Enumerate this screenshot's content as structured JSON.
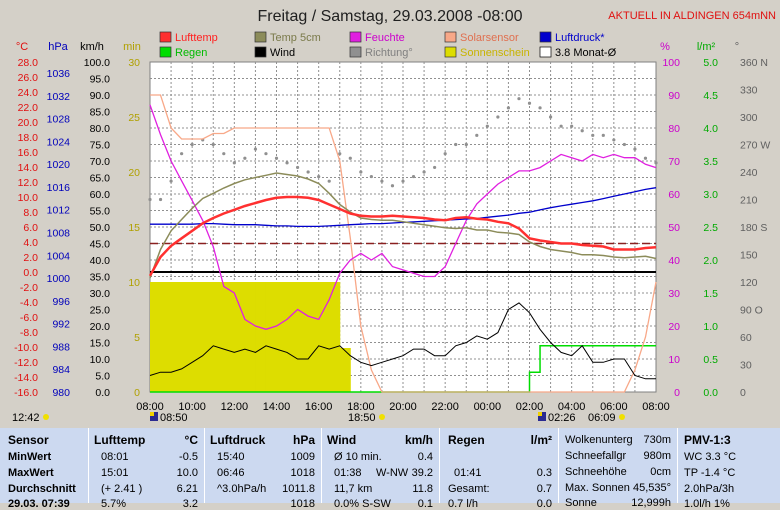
{
  "title": "Freitag / Samstag, 29.03.2008  -08:00",
  "banner": "AKTUELL IN ALDINGEN 654mNN",
  "axis_units": {
    "c": "°C",
    "hpa": "hPa",
    "kmh": "km/h",
    "min": "min",
    "pct": "%",
    "lm2": "l/m²",
    "deg": "°"
  },
  "axes": {
    "temp": [
      "28.0",
      "26.0",
      "24.0",
      "22.0",
      "20.0",
      "18.0",
      "16.0",
      "14.0",
      "12.0",
      "10.0",
      "8.0",
      "6.0",
      "4.0",
      "2.0",
      "0.0",
      "-2.0",
      "-4.0",
      "-6.0",
      "-8.0",
      "-10.0",
      "-12.0",
      "-14.0",
      "-16.0"
    ],
    "hpa": [
      "1036",
      "1032",
      "1028",
      "1024",
      "1020",
      "1016",
      "1012",
      "1008",
      "1004",
      "1000",
      "996",
      "992",
      "988",
      "984",
      "980"
    ],
    "kmh": [
      "100.0",
      "95.0",
      "90.0",
      "85.0",
      "80.0",
      "75.0",
      "70.0",
      "65.0",
      "60.0",
      "55.0",
      "50.0",
      "45.0",
      "40.0",
      "35.0",
      "30.0",
      "25.0",
      "20.0",
      "15.0",
      "10.0",
      "5.0",
      "0.0"
    ],
    "min": [
      "30",
      "25",
      "20",
      "15",
      "10",
      "5",
      "0"
    ],
    "pct": [
      "100",
      "90",
      "80",
      "70",
      "60",
      "50",
      "40",
      "30",
      "20",
      "10",
      "0"
    ],
    "lm2": [
      "5.0",
      "4.5",
      "4.0",
      "3.5",
      "3.0",
      "2.5",
      "2.0",
      "1.5",
      "1.0",
      "0.5",
      "0.0"
    ],
    "deg": [
      "360 N",
      "330",
      "300",
      "270 W",
      "240",
      "210",
      "180 S",
      "150",
      "120",
      "90 O",
      "60",
      "30",
      "0"
    ],
    "time": [
      "08:00",
      "10:00",
      "12:00",
      "14:00",
      "16:00",
      "18:00",
      "20:00",
      "22:00",
      "00:00",
      "02:00",
      "04:00",
      "06:00",
      "08:00"
    ]
  },
  "legend": [
    {
      "label": "Lufttemp",
      "color": "#ff3030",
      "outline": false,
      "label_color": "#ff2020"
    },
    {
      "label": "Regen",
      "color": "#00dd00",
      "outline": false,
      "label_color": "#00bb00"
    },
    {
      "label": "Temp 5cm",
      "color": "#8c8c5a",
      "outline": false,
      "label_color": "#7a7a4a"
    },
    {
      "label": "Wind",
      "color": "#000000",
      "outline": false,
      "label_color": "#000000"
    },
    {
      "label": "Feuchte",
      "color": "#e020e0",
      "outline": false,
      "label_color": "#cc00cc"
    },
    {
      "label": "Richtung°",
      "color": "#909090",
      "outline": false,
      "label_color": "#808080"
    },
    {
      "label": "Solarsensor",
      "color": "#f8a888",
      "outline": false,
      "label_color": "#e07050"
    },
    {
      "label": "Sonnenschein",
      "color": "#dddd00",
      "outline": false,
      "label_color": "#c8b400"
    },
    {
      "label": "Luftdruck*",
      "color": "#0000cc",
      "outline": false,
      "label_color": "#0000cc"
    },
    {
      "label": "3.8 Monat-Ø",
      "color": "#ffffff",
      "outline": true,
      "label_color": "#000000"
    }
  ],
  "markers": [
    {
      "text": "12:42",
      "sun": "yes"
    },
    {
      "text": "08:50",
      "sun": "moon"
    },
    {
      "text": "18:50",
      "sun": "yes"
    },
    {
      "text": "02:26",
      "sun": "moon"
    },
    {
      "text": "06:09",
      "sun": "yes"
    }
  ],
  "table": {
    "sensor": {
      "header": "Sensor",
      "rows": [
        "MinWert",
        "MaxWert",
        "Durchschnitt",
        "29.03. 07:39"
      ]
    },
    "lufttemp": {
      "header": "Lufttemp",
      "unit": "°C",
      "rows": [
        [
          "08:01",
          "-0.5"
        ],
        [
          "15:01",
          "10.0"
        ],
        [
          "(+ 2.41 )",
          "6.21"
        ],
        [
          "5.7% ",
          "3.2"
        ]
      ]
    },
    "luftdruck": {
      "header": "Luftdruck",
      "unit": "hPa",
      "rows": [
        [
          "15:40",
          "1009"
        ],
        [
          "06:46",
          "1018"
        ],
        [
          "^3.0hPa/h",
          "1011.8"
        ],
        [
          "",
          "1018"
        ]
      ]
    },
    "wind": {
      "header": "Wind",
      "unit": "km/h",
      "rows": [
        [
          "Ø 10 min.",
          "",
          "0.4"
        ],
        [
          "01:38",
          "W-NW",
          "39.2"
        ],
        [
          "11,7 km",
          "",
          "11.8"
        ],
        [
          "0.0% S-SW",
          "",
          "0.1"
        ]
      ]
    },
    "regen": {
      "header": "Regen",
      "unit": "l/m²",
      "rows": [
        [
          "",
          ""
        ],
        [
          "01:41",
          "0.3"
        ],
        [
          "Gesamt:",
          "0.7"
        ],
        [
          "0.7 l/h",
          "0.0"
        ]
      ]
    },
    "misc": {
      "rows": [
        [
          "Wolkenunterg",
          "730m"
        ],
        [
          "Schneefallgr",
          "980m"
        ],
        [
          "Schneehöhe",
          "0cm"
        ],
        [
          "Max. Sonnen",
          "45,535°"
        ],
        [
          "Sonne",
          "12,999h"
        ]
      ]
    },
    "pmv": {
      "header": "PMV-1:3",
      "rows": [
        "WC 3.3 °C",
        "TP -1.4 °C",
        "2.0hPa/3h",
        "1.0l/h 1%"
      ]
    }
  },
  "chart_data": {
    "type": "line",
    "title": "Freitag / Samstag, 29.03.2008  -08:00",
    "x_time": [
      "08:00",
      "08:30",
      "09:00",
      "09:30",
      "10:00",
      "10:30",
      "11:00",
      "11:30",
      "12:00",
      "12:30",
      "13:00",
      "13:30",
      "14:00",
      "14:30",
      "15:00",
      "15:30",
      "16:00",
      "16:30",
      "17:00",
      "17:30",
      "18:00",
      "18:30",
      "19:00",
      "19:30",
      "20:00",
      "20:30",
      "21:00",
      "21:30",
      "22:00",
      "22:30",
      "23:00",
      "23:30",
      "00:00",
      "00:30",
      "01:00",
      "01:30",
      "02:00",
      "02:30",
      "03:00",
      "03:30",
      "04:00",
      "04:30",
      "05:00",
      "05:30",
      "06:00",
      "06:30",
      "07:00",
      "07:30",
      "08:00"
    ],
    "series": [
      {
        "name": "Lufttemp",
        "unit": "°C",
        "color": "#ff3030",
        "values": [
          -0.5,
          2.0,
          3.5,
          4.5,
          5.5,
          6.5,
          7.2,
          7.8,
          8.3,
          8.8,
          9.2,
          9.6,
          9.9,
          10.0,
          10.0,
          9.9,
          9.6,
          9.0,
          8.4,
          7.8,
          7.5,
          7.4,
          7.4,
          7.5,
          7.4,
          7.3,
          7.2,
          7.0,
          6.9,
          7.2,
          7.3,
          7.1,
          7.0,
          6.7,
          6.5,
          5.8,
          4.5,
          4.2,
          4.0,
          3.8,
          3.8,
          3.6,
          3.5,
          3.4,
          3.0,
          3.0,
          3.0,
          3.2,
          3.3
        ]
      },
      {
        "name": "Temp 5cm",
        "unit": "°C",
        "color": "#8c8c5a",
        "values": [
          -0.8,
          3.0,
          5.5,
          7.0,
          8.5,
          9.8,
          10.5,
          11.2,
          11.8,
          12.3,
          12.6,
          12.9,
          13.2,
          13.0,
          12.8,
          12.4,
          11.8,
          10.5,
          9.0,
          8.0,
          7.2,
          7.0,
          6.9,
          6.9,
          6.7,
          6.5,
          6.3,
          6.1,
          5.9,
          5.8,
          5.9,
          5.6,
          5.6,
          5.3,
          5.2,
          5.0,
          4.0,
          3.4,
          3.0,
          2.8,
          2.6,
          2.3,
          2.3,
          2.2,
          2.0,
          1.9,
          2.0,
          2.1,
          1.8
        ]
      },
      {
        "name": "Feuchte",
        "unit": "%",
        "color": "#e020e0",
        "values": [
          87,
          78,
          70,
          64,
          58,
          52,
          44,
          32,
          30,
          22,
          20,
          19,
          20,
          22,
          25,
          23,
          22,
          28,
          36,
          40,
          42,
          40,
          42,
          38,
          37,
          36,
          35,
          35,
          38,
          45,
          52,
          57,
          60,
          63,
          65,
          67,
          67,
          68,
          70,
          72,
          71,
          70,
          72,
          71,
          72,
          71,
          71,
          69,
          68
        ]
      },
      {
        "name": "Luftdruck*",
        "unit": "hPa",
        "color": "#0000cc",
        "values": [
          1009.5,
          1009.5,
          1009.5,
          1009.5,
          1009.5,
          1009.6,
          1009.6,
          1009.5,
          1009.4,
          1009.4,
          1009.4,
          1009.3,
          1009.2,
          1009.2,
          1009.1,
          1009.1,
          1009.1,
          1009.2,
          1009.3,
          1009.4,
          1009.5,
          1009.6,
          1009.6,
          1009.7,
          1009.8,
          1009.9,
          1010.0,
          1010.1,
          1010.2,
          1010.3,
          1010.4,
          1010.5,
          1010.7,
          1010.9,
          1011.1,
          1011.4,
          1011.6,
          1012.0,
          1012.4,
          1012.7,
          1013.0,
          1013.3,
          1013.6,
          1014.0,
          1014.4,
          1014.8,
          1015.2,
          1015.6,
          1015.9
        ]
      },
      {
        "name": "Solarsensor",
        "unit": "min",
        "color": "#f8a888",
        "values": [
          27,
          27,
          24,
          23,
          23,
          23,
          23.5,
          23.5,
          24,
          24,
          24,
          24,
          24,
          24,
          24,
          24,
          24,
          24,
          21,
          14,
          6,
          2,
          0,
          0,
          0,
          0,
          0,
          0,
          0,
          0,
          0,
          0,
          0,
          0,
          0,
          0,
          0,
          0,
          0,
          0,
          0,
          0,
          0,
          0,
          0,
          0,
          2,
          5,
          10
        ]
      },
      {
        "name": "Wind",
        "unit": "km/h",
        "color": "#000000",
        "values": [
          5,
          6,
          6,
          7,
          9,
          11,
          14,
          13,
          12,
          13,
          12,
          14,
          13,
          12,
          10,
          10,
          14,
          13,
          14,
          11,
          9,
          8,
          9,
          10,
          11,
          13,
          13,
          11,
          11,
          14,
          15,
          17,
          16,
          18,
          25,
          27,
          24,
          19,
          15,
          12,
          11,
          14,
          9,
          9,
          10,
          10,
          5,
          4,
          4
        ]
      },
      {
        "name": "Richtung°",
        "unit": "°",
        "color": "#909090",
        "values": [
          210,
          210,
          230,
          260,
          270,
          275,
          270,
          260,
          250,
          255,
          265,
          260,
          255,
          250,
          245,
          240,
          235,
          230,
          260,
          255,
          240,
          235,
          230,
          225,
          230,
          235,
          240,
          245,
          260,
          270,
          270,
          280,
          290,
          300,
          310,
          320,
          315,
          310,
          300,
          290,
          290,
          285,
          280,
          280,
          275,
          270,
          265,
          255,
          250
        ]
      },
      {
        "name": "Regen",
        "unit": "l/m²",
        "color": "#00dd00",
        "values": [
          0,
          0,
          0,
          0,
          0,
          0,
          0,
          0,
          0,
          0,
          0,
          0,
          0,
          0,
          0,
          0,
          0,
          0,
          0,
          0,
          0,
          0,
          0,
          0,
          0,
          0,
          0,
          0,
          0,
          0,
          0,
          0,
          0,
          0,
          0,
          0,
          0.3,
          0.7,
          0.7,
          0.7,
          0.7,
          0.7,
          0.7,
          0.7,
          0.7,
          0.7,
          0.7,
          0.7,
          0.7
        ]
      },
      {
        "name": "Sonnenschein",
        "unit": "min",
        "color": "#dddd00",
        "values": [
          10,
          10,
          10,
          10,
          10,
          10,
          10,
          10,
          10,
          10,
          10,
          10,
          10,
          10,
          10,
          10,
          10,
          10,
          4,
          0,
          0,
          0,
          0,
          0,
          0,
          0,
          0,
          0,
          0,
          0,
          0,
          0,
          0,
          0,
          0,
          0,
          0,
          0,
          0,
          0,
          0,
          0,
          0,
          0,
          0,
          0,
          0,
          0,
          0
        ]
      }
    ],
    "ref_lines": [
      {
        "name": "Ø 3.8 Monat",
        "unit": "°C",
        "value": 3.8,
        "color": "#8a2020",
        "dash": true
      },
      {
        "name": "0 °C",
        "unit": "°C",
        "value": 0,
        "color": "#000000",
        "dash": false
      }
    ],
    "ranges": {
      "temp": [
        -16,
        28
      ],
      "hpa": [
        980,
        1038
      ],
      "kmh": [
        0,
        100
      ],
      "min": [
        0,
        30
      ],
      "pct": [
        0,
        100
      ],
      "lm2": [
        0,
        5
      ],
      "deg": [
        0,
        360
      ]
    },
    "grid": true
  }
}
